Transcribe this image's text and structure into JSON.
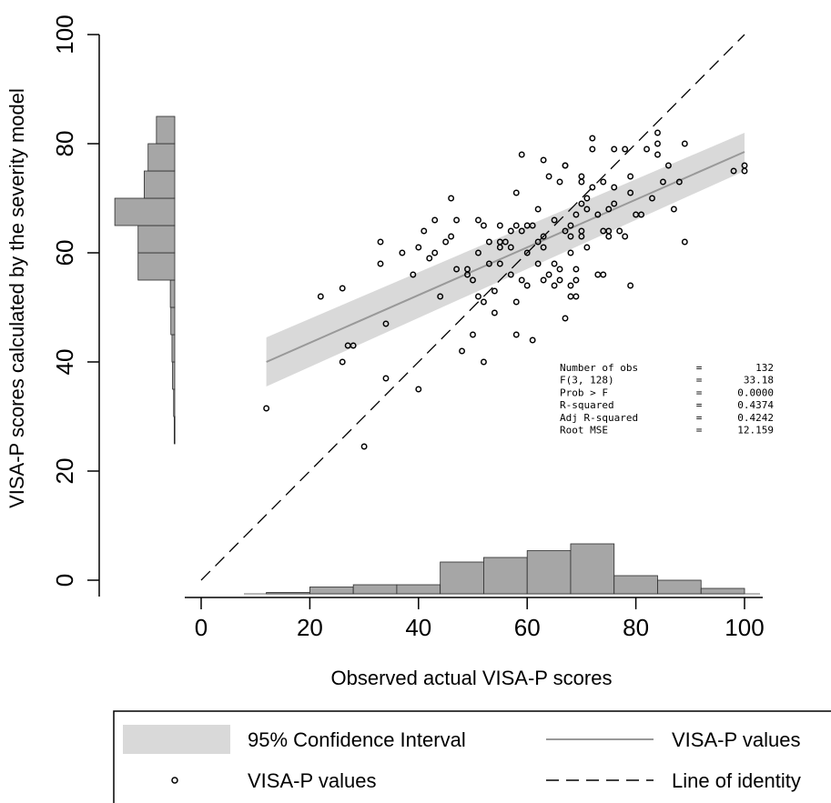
{
  "chart_data": {
    "type": "scatter",
    "xlabel": "Observed actual VISA-P scores",
    "ylabel": "VISA-P scores calculated by the severity model",
    "xlim": [
      -3,
      103
    ],
    "ylim": [
      -3,
      103
    ],
    "x_ticks": [
      "0",
      "20",
      "40",
      "60",
      "80",
      "100"
    ],
    "y_ticks": [
      "0",
      "20",
      "40",
      "60",
      "80",
      "100"
    ],
    "x_tick_values": [
      0,
      20,
      40,
      60,
      80,
      100
    ],
    "y_tick_values": [
      0,
      20,
      40,
      60,
      80,
      100
    ],
    "grid": false,
    "points": [
      {
        "x": 12,
        "y": 31.5
      },
      {
        "x": 22,
        "y": 52
      },
      {
        "x": 26,
        "y": 40
      },
      {
        "x": 26,
        "y": 53.5
      },
      {
        "x": 27,
        "y": 43
      },
      {
        "x": 28,
        "y": 43
      },
      {
        "x": 30,
        "y": 24.5
      },
      {
        "x": 33,
        "y": 62
      },
      {
        "x": 33,
        "y": 58
      },
      {
        "x": 34,
        "y": 47
      },
      {
        "x": 34,
        "y": 37
      },
      {
        "x": 37,
        "y": 60
      },
      {
        "x": 39,
        "y": 56
      },
      {
        "x": 40,
        "y": 35
      },
      {
        "x": 40,
        "y": 61
      },
      {
        "x": 41,
        "y": 64
      },
      {
        "x": 42,
        "y": 59
      },
      {
        "x": 43,
        "y": 66
      },
      {
        "x": 43,
        "y": 60
      },
      {
        "x": 44,
        "y": 52
      },
      {
        "x": 45,
        "y": 62
      },
      {
        "x": 46,
        "y": 63
      },
      {
        "x": 46,
        "y": 70
      },
      {
        "x": 47,
        "y": 57
      },
      {
        "x": 47,
        "y": 66
      },
      {
        "x": 48,
        "y": 42
      },
      {
        "x": 49,
        "y": 56
      },
      {
        "x": 49,
        "y": 57
      },
      {
        "x": 50,
        "y": 45
      },
      {
        "x": 50,
        "y": 55
      },
      {
        "x": 51,
        "y": 66
      },
      {
        "x": 51,
        "y": 60
      },
      {
        "x": 51,
        "y": 52
      },
      {
        "x": 52,
        "y": 65
      },
      {
        "x": 52,
        "y": 51
      },
      {
        "x": 52,
        "y": 40
      },
      {
        "x": 53,
        "y": 58
      },
      {
        "x": 53,
        "y": 62
      },
      {
        "x": 54,
        "y": 53
      },
      {
        "x": 54,
        "y": 49
      },
      {
        "x": 55,
        "y": 62
      },
      {
        "x": 55,
        "y": 58
      },
      {
        "x": 55,
        "y": 65
      },
      {
        "x": 55,
        "y": 61
      },
      {
        "x": 56,
        "y": 62
      },
      {
        "x": 57,
        "y": 56
      },
      {
        "x": 57,
        "y": 64
      },
      {
        "x": 57,
        "y": 61
      },
      {
        "x": 58,
        "y": 65
      },
      {
        "x": 58,
        "y": 45
      },
      {
        "x": 58,
        "y": 71
      },
      {
        "x": 58,
        "y": 51
      },
      {
        "x": 59,
        "y": 64
      },
      {
        "x": 59,
        "y": 55
      },
      {
        "x": 59,
        "y": 78
      },
      {
        "x": 60,
        "y": 54
      },
      {
        "x": 60,
        "y": 60
      },
      {
        "x": 60,
        "y": 65
      },
      {
        "x": 61,
        "y": 44
      },
      {
        "x": 61,
        "y": 65
      },
      {
        "x": 62,
        "y": 68
      },
      {
        "x": 62,
        "y": 62
      },
      {
        "x": 62,
        "y": 58
      },
      {
        "x": 63,
        "y": 55
      },
      {
        "x": 63,
        "y": 77
      },
      {
        "x": 63,
        "y": 63
      },
      {
        "x": 63,
        "y": 61
      },
      {
        "x": 64,
        "y": 56
      },
      {
        "x": 64,
        "y": 74
      },
      {
        "x": 65,
        "y": 58
      },
      {
        "x": 65,
        "y": 66
      },
      {
        "x": 65,
        "y": 54
      },
      {
        "x": 66,
        "y": 57
      },
      {
        "x": 66,
        "y": 55
      },
      {
        "x": 67,
        "y": 76
      },
      {
        "x": 67,
        "y": 64
      },
      {
        "x": 67,
        "y": 76
      },
      {
        "x": 67,
        "y": 48
      },
      {
        "x": 68,
        "y": 54
      },
      {
        "x": 68,
        "y": 52
      },
      {
        "x": 68,
        "y": 60
      },
      {
        "x": 68,
        "y": 63
      },
      {
        "x": 68,
        "y": 65
      },
      {
        "x": 69,
        "y": 55
      },
      {
        "x": 69,
        "y": 67
      },
      {
        "x": 69,
        "y": 57
      },
      {
        "x": 69,
        "y": 52
      },
      {
        "x": 70,
        "y": 64
      },
      {
        "x": 70,
        "y": 63
      },
      {
        "x": 70,
        "y": 74
      },
      {
        "x": 70,
        "y": 73
      },
      {
        "x": 70,
        "y": 69
      },
      {
        "x": 71,
        "y": 70
      },
      {
        "x": 71,
        "y": 61
      },
      {
        "x": 71,
        "y": 68
      },
      {
        "x": 72,
        "y": 79
      },
      {
        "x": 72,
        "y": 81
      },
      {
        "x": 72,
        "y": 72
      },
      {
        "x": 73,
        "y": 56
      },
      {
        "x": 73,
        "y": 67
      },
      {
        "x": 74,
        "y": 73
      },
      {
        "x": 74,
        "y": 64
      },
      {
        "x": 74,
        "y": 56
      },
      {
        "x": 75,
        "y": 68
      },
      {
        "x": 75,
        "y": 64
      },
      {
        "x": 75,
        "y": 63
      },
      {
        "x": 76,
        "y": 72
      },
      {
        "x": 76,
        "y": 79
      },
      {
        "x": 76,
        "y": 69
      },
      {
        "x": 77,
        "y": 64
      },
      {
        "x": 78,
        "y": 63
      },
      {
        "x": 78,
        "y": 79
      },
      {
        "x": 79,
        "y": 71
      },
      {
        "x": 79,
        "y": 74
      },
      {
        "x": 79,
        "y": 54
      },
      {
        "x": 80,
        "y": 67
      },
      {
        "x": 81,
        "y": 67
      },
      {
        "x": 82,
        "y": 79
      },
      {
        "x": 83,
        "y": 70
      },
      {
        "x": 84,
        "y": 78
      },
      {
        "x": 84,
        "y": 82
      },
      {
        "x": 84,
        "y": 80
      },
      {
        "x": 85,
        "y": 73
      },
      {
        "x": 86,
        "y": 76
      },
      {
        "x": 87,
        "y": 68
      },
      {
        "x": 88,
        "y": 73
      },
      {
        "x": 89,
        "y": 80
      },
      {
        "x": 89,
        "y": 62
      },
      {
        "x": 98,
        "y": 75
      },
      {
        "x": 100,
        "y": 76
      },
      {
        "x": 100,
        "y": 75
      },
      {
        "x": 66,
        "y": 73
      }
    ],
    "fit_line": {
      "x": [
        12,
        100
      ],
      "y": [
        40,
        78.5
      ]
    },
    "ci_band": {
      "x": [
        12,
        100
      ],
      "lower": [
        35.5,
        75
      ],
      "upper": [
        44.5,
        82
      ]
    },
    "identity_line": {
      "x": [
        0,
        100
      ],
      "y": [
        0,
        100
      ]
    },
    "x_histogram": {
      "bins": [
        [
          12,
          20
        ],
        [
          20,
          28
        ],
        [
          28,
          36
        ],
        [
          36,
          44
        ],
        [
          44,
          52
        ],
        [
          52,
          60
        ],
        [
          60,
          68
        ],
        [
          68,
          76
        ],
        [
          76,
          84
        ],
        [
          84,
          92
        ],
        [
          92,
          100
        ]
      ],
      "heights": [
        0.3,
        1.5,
        2,
        2,
        7,
        8,
        9.5,
        11,
        4,
        3,
        1.2
      ]
    },
    "y_histogram": {
      "bins": [
        [
          25,
          30
        ],
        [
          30,
          35
        ],
        [
          35,
          40
        ],
        [
          40,
          45
        ],
        [
          45,
          50
        ],
        [
          50,
          55
        ],
        [
          55,
          60
        ],
        [
          60,
          65
        ],
        [
          65,
          70
        ],
        [
          70,
          75
        ],
        [
          75,
          80
        ],
        [
          80,
          85
        ]
      ],
      "heights": [
        0.1,
        0.2,
        0.4,
        0.5,
        0.7,
        0.8,
        6.6,
        6.6,
        10.8,
        5.5,
        4.8,
        3.3
      ]
    },
    "stats": [
      {
        "label": "Number of obs",
        "eq": "=",
        "value": "132"
      },
      {
        "label": "F(3, 128)",
        "eq": "=",
        "value": "33.18"
      },
      {
        "label": "Prob > F",
        "eq": "=",
        "value": "0.0000"
      },
      {
        "label": "R-squared",
        "eq": "=",
        "value": "0.4374"
      },
      {
        "label": "Adj R-squared",
        "eq": "=",
        "value": "0.4242"
      },
      {
        "label": "Root MSE",
        "eq": "=",
        "value": "12.159"
      }
    ],
    "legend": {
      "placement": "bottom",
      "items": [
        {
          "label": "95% Confidence Interval",
          "kind": "band",
          "color": "#d9d9d9"
        },
        {
          "label": "VISA-P values",
          "kind": "line",
          "color": "#999999"
        },
        {
          "label": "VISA-P values",
          "kind": "marker",
          "color": "#000000"
        },
        {
          "label": "Line of identity",
          "kind": "dashed",
          "color": "#000000"
        }
      ]
    },
    "colors": {
      "band": "#d9d9d9",
      "fit": "#999999",
      "hist_fill": "#a6a6a6",
      "hist_stroke": "#2b2b2b",
      "identity": "#000000",
      "marker": "#000000"
    }
  }
}
